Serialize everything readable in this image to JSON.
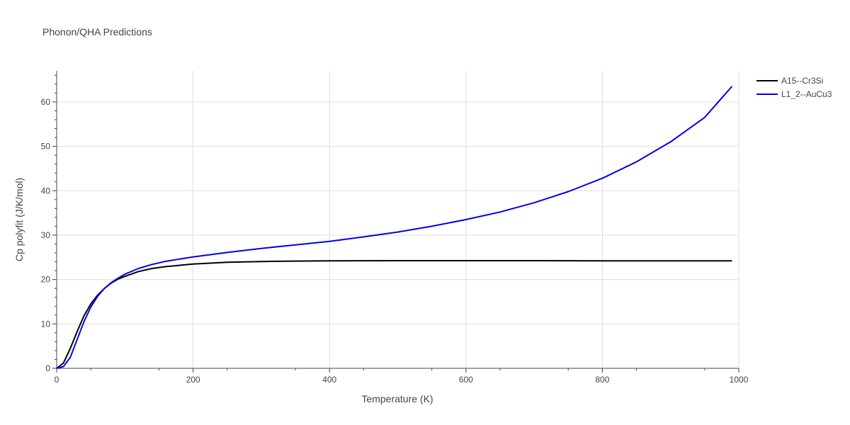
{
  "chart_data": {
    "type": "line",
    "title": "Phonon/QHA Predictions",
    "xlabel": "Temperature (K)",
    "ylabel": "Cp polyfit (J/K/mol)",
    "xlim": [
      0,
      1000
    ],
    "ylim": [
      0,
      67
    ],
    "xticks": [
      0,
      200,
      400,
      600,
      800,
      1000
    ],
    "yticks": [
      0,
      10,
      20,
      30,
      40,
      50,
      60
    ],
    "grid": true,
    "legend_position": "top-right",
    "series": [
      {
        "name": "A15--Cr3Si",
        "color": "#000000",
        "x": [
          0,
          10,
          20,
          30,
          40,
          50,
          60,
          70,
          80,
          90,
          100,
          120,
          140,
          160,
          180,
          200,
          250,
          300,
          350,
          400,
          500,
          600,
          700,
          800,
          900,
          990
        ],
        "y": [
          0,
          1.2,
          4.5,
          8.3,
          11.8,
          14.5,
          16.5,
          18.0,
          19.2,
          20.1,
          20.7,
          21.8,
          22.5,
          22.9,
          23.2,
          23.5,
          23.9,
          24.05,
          24.15,
          24.2,
          24.25,
          24.25,
          24.25,
          24.2,
          24.2,
          24.2
        ]
      },
      {
        "name": "L1_2--AuCu3",
        "color": "#0000ee",
        "x": [
          0,
          10,
          20,
          30,
          40,
          50,
          60,
          70,
          80,
          90,
          100,
          120,
          140,
          160,
          180,
          200,
          250,
          300,
          350,
          400,
          450,
          500,
          550,
          600,
          650,
          700,
          750,
          800,
          850,
          900,
          950,
          990
        ],
        "y": [
          0,
          0.4,
          2.5,
          6.5,
          10.5,
          13.8,
          16.2,
          18.0,
          19.3,
          20.3,
          21.2,
          22.5,
          23.4,
          24.1,
          24.6,
          25.1,
          26.1,
          27.0,
          27.8,
          28.6,
          29.6,
          30.7,
          32.0,
          33.5,
          35.2,
          37.3,
          39.8,
          42.8,
          46.5,
          51.0,
          56.5,
          63.5
        ]
      }
    ]
  }
}
